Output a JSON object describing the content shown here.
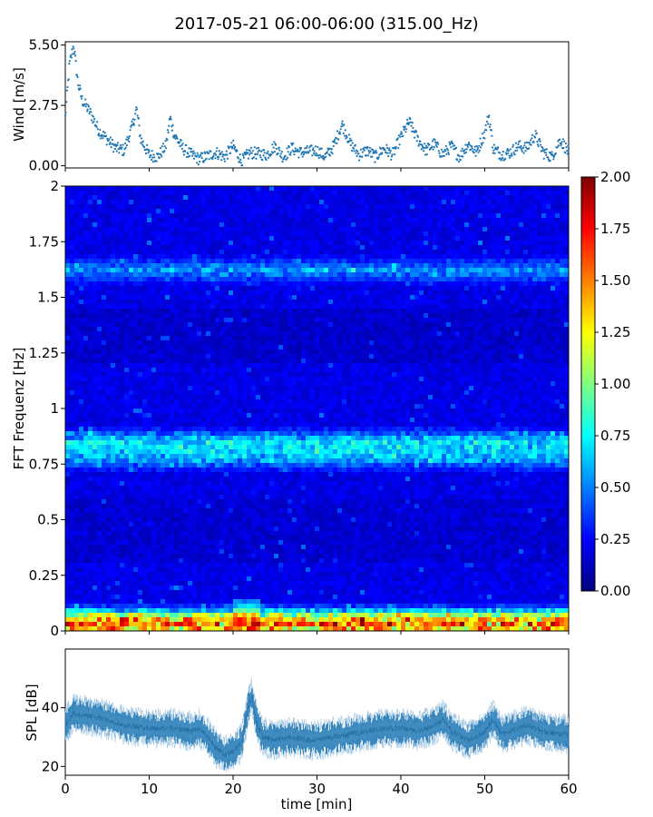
{
  "title": "2017-05-21 06:00-06:00 (315.00_Hz)",
  "colors": {
    "wind_marker": "#1f77b4",
    "spl_line": "#1f77b4",
    "axes": "#000000"
  },
  "chart_data": [
    {
      "id": "wind",
      "type": "scatter",
      "xlabel": "",
      "ylabel": "Wind [m/s]",
      "xlim": [
        0,
        60
      ],
      "ylim": [
        -0.1,
        5.65
      ],
      "yticks": [
        0.0,
        2.75,
        5.5
      ],
      "ytick_labels": [
        "0.00",
        "2.75",
        "5.50"
      ],
      "xticks": [
        0,
        10,
        20,
        30,
        40,
        50,
        60
      ],
      "keypoints": [
        [
          0,
          2.2
        ],
        [
          0.5,
          4.6
        ],
        [
          1,
          5.5
        ],
        [
          1.5,
          3.8
        ],
        [
          2,
          3.0
        ],
        [
          3,
          2.4
        ],
        [
          4,
          1.6
        ],
        [
          5,
          1.2
        ],
        [
          6,
          0.8
        ],
        [
          7,
          0.7
        ],
        [
          8,
          1.8
        ],
        [
          8.5,
          2.6
        ],
        [
          9,
          1.2
        ],
        [
          10,
          0.5
        ],
        [
          11,
          0.4
        ],
        [
          12,
          0.9
        ],
        [
          12.5,
          2.2
        ],
        [
          13,
          1.4
        ],
        [
          14,
          0.8
        ],
        [
          15,
          0.5
        ],
        [
          16,
          0.3
        ],
        [
          18,
          0.6
        ],
        [
          19,
          0.4
        ],
        [
          20,
          0.9
        ],
        [
          21,
          0.2
        ],
        [
          22,
          0.6
        ],
        [
          24,
          0.5
        ],
        [
          25,
          0.9
        ],
        [
          26,
          0.4
        ],
        [
          27,
          0.8
        ],
        [
          28,
          0.6
        ],
        [
          30,
          0.7
        ],
        [
          31,
          0.4
        ],
        [
          32,
          0.9
        ],
        [
          33,
          1.9
        ],
        [
          34,
          1.0
        ],
        [
          35,
          0.5
        ],
        [
          36,
          0.7
        ],
        [
          37,
          0.4
        ],
        [
          38,
          0.8
        ],
        [
          39,
          0.5
        ],
        [
          40,
          1.3
        ],
        [
          41,
          2.0
        ],
        [
          42,
          1.2
        ],
        [
          43,
          0.7
        ],
        [
          44,
          1.0
        ],
        [
          45,
          0.5
        ],
        [
          46,
          0.9
        ],
        [
          47,
          0.4
        ],
        [
          48,
          1.0
        ],
        [
          49,
          0.6
        ],
        [
          50,
          1.5
        ],
        [
          50.5,
          2.3
        ],
        [
          51,
          0.8
        ],
        [
          52,
          0.5
        ],
        [
          53,
          0.6
        ],
        [
          54,
          0.9
        ],
        [
          55,
          0.8
        ],
        [
          56,
          1.4
        ],
        [
          57,
          0.6
        ],
        [
          58,
          0.4
        ],
        [
          59,
          1.2
        ],
        [
          60,
          0.6
        ]
      ]
    },
    {
      "id": "spectrogram",
      "type": "heatmap",
      "xlabel": "",
      "ylabel": "FFT Frequenz [Hz]",
      "xlim": [
        0,
        60
      ],
      "ylim": [
        0,
        2
      ],
      "yticks": [
        0,
        0.25,
        0.5,
        0.75,
        1,
        1.25,
        1.5,
        1.75,
        2
      ],
      "ytick_labels": [
        "0",
        "0.25",
        "0.5",
        "0.75",
        "1",
        "1.25",
        "1.5",
        "1.75",
        "2"
      ],
      "colormap": "jet",
      "clim": [
        0,
        2
      ],
      "colorbar_ticks": [
        "0.00",
        "0.25",
        "0.50",
        "0.75",
        "1.00",
        "1.25",
        "1.50",
        "1.75",
        "2.00"
      ],
      "bands": [
        {
          "freq": 0.85,
          "level": 0.8
        },
        {
          "freq": 0.78,
          "level": 0.7
        },
        {
          "freq": 1.62,
          "level": 0.55
        },
        {
          "freq": 0.02,
          "level": 1.6
        },
        {
          "freq": 0.06,
          "level": 0.9
        }
      ]
    },
    {
      "id": "spl",
      "type": "line",
      "xlabel": "time [min]",
      "ylabel": "SPL [dB]",
      "xlim": [
        0,
        60
      ],
      "ylim": [
        17,
        60
      ],
      "yticks": [
        20,
        40
      ],
      "ytick_labels": [
        "20",
        "40"
      ],
      "xticks": [
        0,
        10,
        20,
        30,
        40,
        50,
        60
      ],
      "xtick_labels": [
        "0",
        "10",
        "20",
        "30",
        "40",
        "50",
        "60"
      ],
      "keypoints": [
        [
          0,
          34
        ],
        [
          1,
          38
        ],
        [
          3,
          37
        ],
        [
          5,
          36
        ],
        [
          7,
          34
        ],
        [
          10,
          33
        ],
        [
          13,
          33
        ],
        [
          15,
          32
        ],
        [
          16,
          33
        ],
        [
          17,
          30
        ],
        [
          18,
          26
        ],
        [
          19,
          24
        ],
        [
          20,
          25
        ],
        [
          21,
          28
        ],
        [
          21.8,
          40
        ],
        [
          22.2,
          44
        ],
        [
          22.8,
          35
        ],
        [
          23.5,
          30
        ],
        [
          25,
          29
        ],
        [
          27,
          30
        ],
        [
          29,
          29
        ],
        [
          30,
          29
        ],
        [
          32,
          30
        ],
        [
          34,
          31
        ],
        [
          36,
          32
        ],
        [
          38,
          33
        ],
        [
          40,
          33
        ],
        [
          42,
          32
        ],
        [
          44,
          34
        ],
        [
          45,
          36
        ],
        [
          46,
          32
        ],
        [
          48,
          29
        ],
        [
          49,
          30
        ],
        [
          50,
          32
        ],
        [
          51,
          36
        ],
        [
          52,
          31
        ],
        [
          54,
          33
        ],
        [
          55,
          34
        ],
        [
          57,
          32
        ],
        [
          59,
          31
        ],
        [
          60,
          31
        ]
      ]
    }
  ]
}
